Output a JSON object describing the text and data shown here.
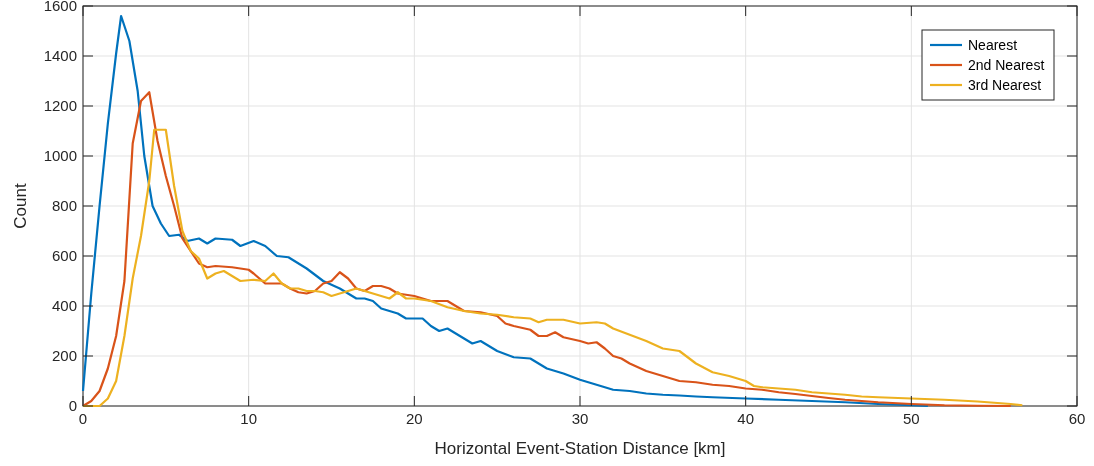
{
  "chart_data": {
    "type": "line",
    "xlabel": "Horizontal Event-Station Distance [km]",
    "ylabel": "Count",
    "xlim": [
      0,
      60
    ],
    "xticks": [
      0,
      10,
      20,
      30,
      40,
      50,
      60
    ],
    "ylim": [
      0,
      1600
    ],
    "yticks": [
      0,
      200,
      400,
      600,
      800,
      1000,
      1200,
      1400,
      1600
    ],
    "grid": true,
    "legend": "top right",
    "line_style": "solid",
    "series": [
      {
        "name": "Nearest",
        "color": "#0072bd",
        "x": [
          0,
          0.5,
          1,
          1.5,
          2,
          2.3,
          2.8,
          3.3,
          3.7,
          4.2,
          4.7,
          5.2,
          5.8,
          6.3,
          7,
          7.5,
          8,
          9,
          9.5,
          10.3,
          11,
          11.7,
          12.4,
          13.5,
          14.5,
          15.5,
          16.5,
          17,
          17.5,
          18,
          19,
          19.5,
          20.5,
          21,
          21.5,
          22,
          23,
          23.5,
          24,
          24.5,
          25,
          26,
          27,
          28,
          29,
          30,
          31,
          32,
          33,
          34,
          35,
          36,
          37,
          38,
          40,
          42,
          44,
          46,
          48,
          50,
          51
        ],
        "values": [
          60,
          450,
          800,
          1130,
          1410,
          1560,
          1460,
          1260,
          1000,
          800,
          730,
          680,
          685,
          660,
          670,
          650,
          670,
          665,
          640,
          660,
          640,
          600,
          595,
          550,
          500,
          470,
          430,
          430,
          420,
          390,
          370,
          350,
          350,
          320,
          300,
          310,
          270,
          250,
          260,
          240,
          220,
          195,
          190,
          150,
          130,
          105,
          85,
          65,
          60,
          50,
          45,
          42,
          38,
          35,
          30,
          25,
          20,
          15,
          8,
          3,
          0
        ]
      },
      {
        "name": "2nd Nearest",
        "color": "#d95319",
        "x": [
          0,
          0.5,
          1,
          1.5,
          2,
          2.5,
          3,
          3.5,
          4,
          4.5,
          5,
          5.5,
          6,
          7,
          7.5,
          8,
          9,
          10,
          10.3,
          11,
          12,
          12.5,
          13,
          13.5,
          14,
          14.5,
          15,
          15.5,
          16,
          16.5,
          17,
          17.5,
          18,
          18.5,
          19,
          20,
          21,
          22,
          23,
          24,
          25,
          25.5,
          26,
          27,
          27.5,
          28,
          28.5,
          29,
          30,
          30.5,
          31,
          31.5,
          32,
          32.5,
          33,
          34,
          35,
          36,
          37,
          38,
          39,
          40,
          41,
          42,
          43,
          44,
          45,
          46,
          47,
          48,
          50,
          52,
          54,
          56
        ],
        "values": [
          0,
          20,
          60,
          150,
          280,
          500,
          1050,
          1220,
          1255,
          1060,
          920,
          800,
          670,
          570,
          555,
          560,
          555,
          545,
          530,
          490,
          490,
          470,
          455,
          450,
          460,
          490,
          500,
          535,
          510,
          470,
          460,
          480,
          480,
          470,
          450,
          440,
          420,
          420,
          380,
          375,
          360,
          330,
          320,
          305,
          280,
          280,
          295,
          275,
          260,
          250,
          255,
          230,
          200,
          190,
          170,
          140,
          120,
          100,
          95,
          85,
          80,
          70,
          65,
          55,
          48,
          40,
          32,
          25,
          20,
          15,
          8,
          3,
          1,
          0
        ]
      },
      {
        "name": "3rd Nearest",
        "color": "#edb120",
        "x": [
          0,
          1,
          1.5,
          2,
          2.5,
          3,
          3.5,
          4,
          4.3,
          5,
          5.5,
          6,
          6.5,
          7,
          7.5,
          8,
          8.5,
          9,
          9.5,
          10.3,
          11,
          11.5,
          12,
          12.5,
          13,
          13.5,
          14,
          14.5,
          15,
          16,
          16.5,
          17,
          18,
          18.5,
          19,
          19.5,
          20,
          21,
          22,
          23,
          24,
          25,
          26,
          27,
          27.5,
          28,
          29,
          30,
          31,
          31.5,
          32,
          33,
          34,
          35,
          36,
          37,
          38,
          39,
          40,
          40.5,
          41,
          42,
          43,
          44,
          45,
          46,
          47,
          48,
          50,
          52,
          54,
          56,
          56.7
        ],
        "values": [
          0,
          0,
          30,
          100,
          280,
          510,
          680,
          900,
          1105,
          1105,
          880,
          700,
          620,
          590,
          510,
          530,
          540,
          520,
          500,
          505,
          500,
          530,
          490,
          470,
          470,
          460,
          460,
          455,
          440,
          460,
          470,
          460,
          440,
          430,
          455,
          430,
          430,
          420,
          395,
          380,
          370,
          365,
          355,
          350,
          335,
          345,
          345,
          330,
          335,
          330,
          310,
          285,
          260,
          230,
          220,
          170,
          135,
          120,
          100,
          80,
          75,
          70,
          65,
          55,
          50,
          45,
          38,
          35,
          30,
          25,
          18,
          8,
          3
        ]
      }
    ]
  }
}
